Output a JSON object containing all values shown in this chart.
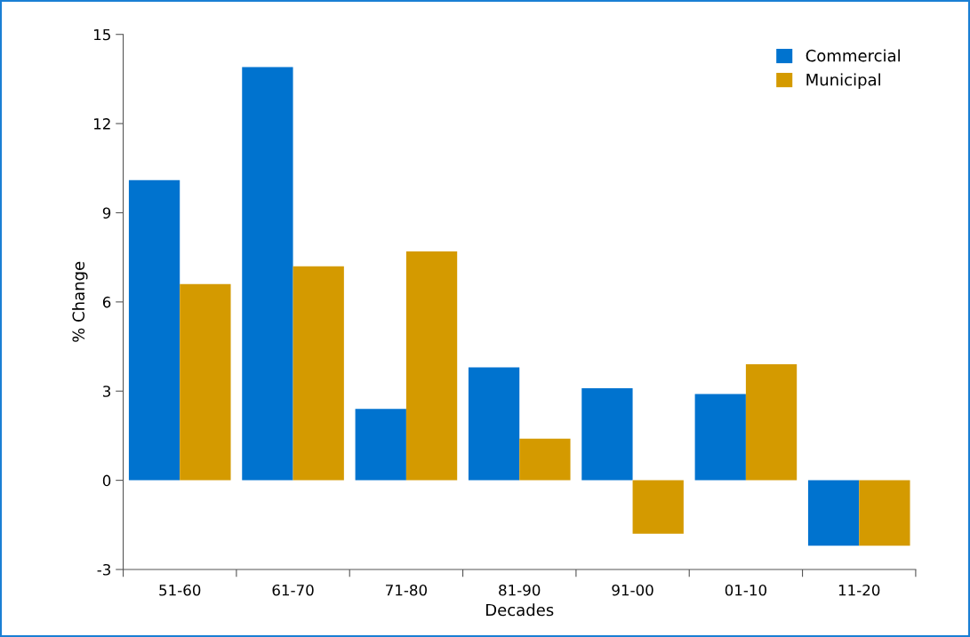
{
  "chart_data": {
    "type": "bar",
    "xlabel": "Decades",
    "ylabel": "% Change",
    "categories": [
      "51-60",
      "61-70",
      "71-80",
      "81-90",
      "91-00",
      "01-10",
      "11-20"
    ],
    "series": [
      {
        "name": "Commercial",
        "color": "#0073cf",
        "values": [
          10.1,
          13.9,
          2.4,
          3.8,
          3.1,
          2.9,
          -2.2
        ]
      },
      {
        "name": "Municipal",
        "color": "#d49a00",
        "values": [
          6.6,
          7.2,
          7.7,
          1.4,
          -1.8,
          3.9,
          -2.2
        ]
      }
    ],
    "ylim": [
      -3,
      15
    ],
    "yticks": [
      -3,
      0,
      3,
      6,
      9,
      12,
      15
    ],
    "grid": false,
    "legend": "top right"
  }
}
